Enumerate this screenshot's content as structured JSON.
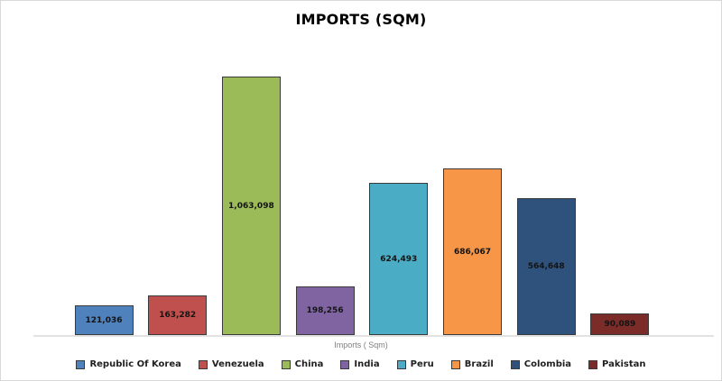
{
  "title": "IMPORTS (SQM)",
  "chart_data": {
    "type": "bar",
    "title": "IMPORTS (SQM)",
    "xlabel": "Imports ( Sqm)",
    "ylabel": "",
    "categories": [
      "Republic Of Korea",
      "Venezuela",
      "China",
      "India",
      "Peru",
      "Brazil",
      "Colombia",
      "Pakistan"
    ],
    "values": [
      121036,
      163282,
      1063098,
      198256,
      624493,
      686067,
      564648,
      90089
    ],
    "labels": [
      "121,036",
      "163,282",
      "1,063,098",
      "198,256",
      "624,493",
      "686,067",
      "564,648",
      "90,089"
    ],
    "colors": [
      "#4F81BD",
      "#C0504D",
      "#9BBB59",
      "#8064A2",
      "#4BACC6",
      "#F79646",
      "#2E527C",
      "#7B2C29"
    ],
    "bar_border_color": "#3A3A3A",
    "axis_line_color": "#E2E2E2",
    "title_color": "#000000",
    "value_label_color": "#141414",
    "xlabel_color": "#7F7F7F",
    "legend_text_color": "#1F1F1F",
    "ylim": [
      0,
      1063098
    ],
    "grid": false,
    "legend_position": "bottom"
  }
}
